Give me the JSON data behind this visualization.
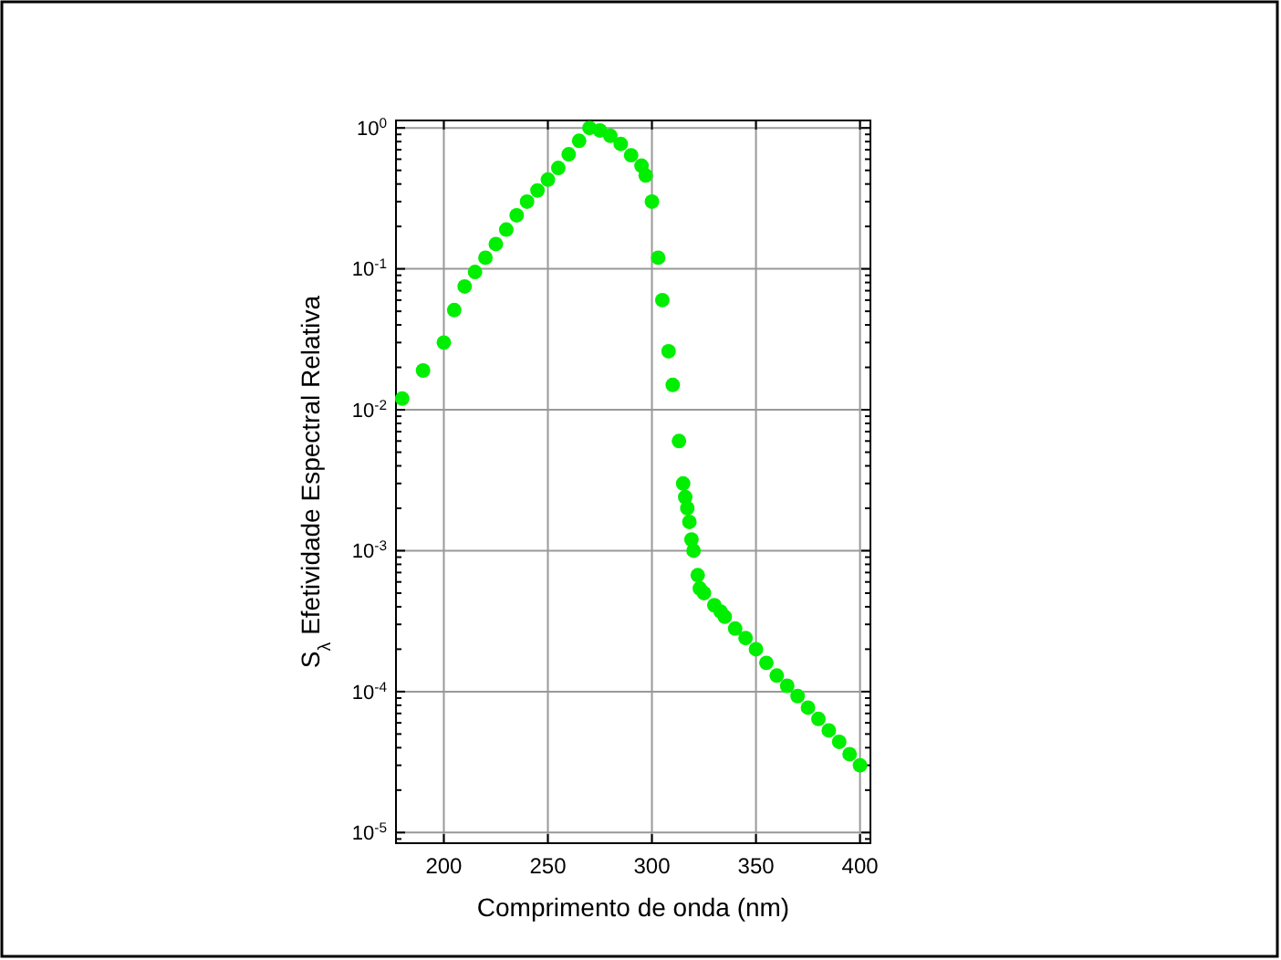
{
  "chart_data": {
    "type": "scatter",
    "xlabel": "Comprimento de onda (nm)",
    "ylabel": "S$_{λ}$ Efetividade Espectral Relativa",
    "x": [
      180,
      190,
      200,
      205,
      210,
      215,
      220,
      225,
      230,
      235,
      240,
      245,
      250,
      255,
      260,
      265,
      270,
      275,
      280,
      285,
      290,
      295,
      297,
      300,
      303,
      305,
      308,
      310,
      313,
      315,
      316,
      317,
      318,
      319,
      320,
      322,
      323,
      325,
      330,
      333,
      335,
      340,
      345,
      350,
      355,
      360,
      365,
      370,
      375,
      380,
      385,
      390,
      395,
      400
    ],
    "series": [
      {
        "color": "#00ee00",
        "values": [
          0.012,
          0.019,
          0.03,
          0.051,
          0.075,
          0.095,
          0.12,
          0.15,
          0.19,
          0.24,
          0.3,
          0.36,
          0.43,
          0.52,
          0.65,
          0.81,
          1.0,
          0.96,
          0.88,
          0.77,
          0.64,
          0.54,
          0.46,
          0.3,
          0.12,
          0.06,
          0.026,
          0.015,
          0.006,
          0.003,
          0.0024,
          0.002,
          0.0016,
          0.0012,
          0.001,
          0.00067,
          0.00054,
          0.0005,
          0.00041,
          0.00037,
          0.00034,
          0.00028,
          0.00024,
          0.0002,
          0.00016,
          0.00013,
          0.00011,
          9.3e-05,
          7.7e-05,
          6.4e-05,
          5.3e-05,
          4.4e-05,
          3.6e-05,
          3e-05
        ]
      }
    ],
    "log": "y",
    "xlim": [
      177,
      405
    ],
    "ylim": [
      8.4e-06,
      1.13
    ],
    "xticks": [
      200,
      250,
      300,
      350,
      400
    ],
    "yticks": [
      {
        "value": 1e-05,
        "label": "10$^{-5}$"
      },
      {
        "value": 0.0001,
        "label": "10$^{-4}$"
      },
      {
        "value": 0.001,
        "label": "10$^{-3}$"
      },
      {
        "value": 0.01,
        "label": "10$^{-2}$"
      },
      {
        "value": 0.1,
        "label": "10$^{-1}$"
      },
      {
        "value": 1,
        "label": "10$^{0}$"
      }
    ],
    "grid": true,
    "marker": "circle"
  }
}
